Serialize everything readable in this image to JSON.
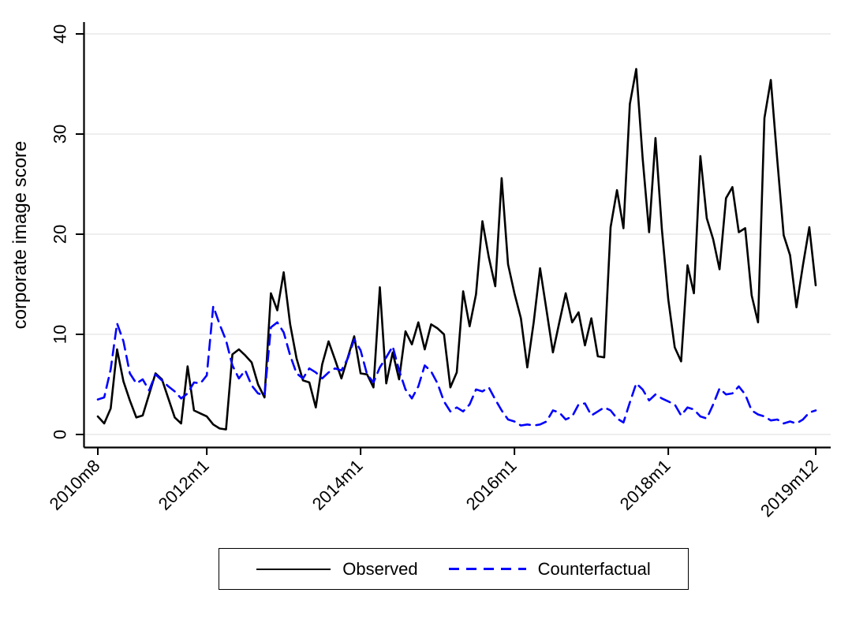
{
  "figure": {
    "background": "#ffffff",
    "axis_color": "#000000",
    "grid_color": "#e8e8e8"
  },
  "chart_data": {
    "type": "line",
    "title": "",
    "ylabel": "corporate image score",
    "xlabel": "",
    "ylim": [
      0,
      40
    ],
    "yticks": [
      0,
      10,
      20,
      30,
      40
    ],
    "grid": "horizontal",
    "legend_position": "bottom-center-boxed",
    "x_unit": "month",
    "x_start_label": "2010m8",
    "x_end_label": "2019m12",
    "xticks": [
      {
        "label": "2010m8",
        "month": 0
      },
      {
        "label": "2012m1",
        "month": 17
      },
      {
        "label": "2014m1",
        "month": 41
      },
      {
        "label": "2016m1",
        "month": 65
      },
      {
        "label": "2018m1",
        "month": 89
      },
      {
        "label": "2019m12",
        "month": 112
      }
    ],
    "series": [
      {
        "name": "Observed",
        "color": "#000000",
        "dash": "solid",
        "values": [
          1.8,
          1.1,
          2.6,
          8.5,
          5.3,
          3.4,
          1.7,
          1.9,
          4.0,
          6.1,
          5.5,
          3.6,
          1.7,
          1.1,
          6.8,
          2.4,
          2.1,
          1.8,
          1.0,
          0.6,
          0.5,
          8.0,
          8.5,
          7.9,
          7.2,
          5.0,
          3.7,
          14.1,
          12.4,
          16.2,
          11.0,
          7.6,
          5.4,
          5.2,
          2.7,
          7.0,
          9.3,
          7.5,
          5.6,
          7.7,
          9.8,
          6.1,
          6.0,
          4.7,
          14.7,
          5.1,
          8.2,
          5.5,
          10.3,
          9.0,
          11.2,
          8.5,
          11.0,
          10.6,
          10.0,
          4.7,
          6.2,
          14.3,
          10.8,
          14.0,
          21.3,
          17.7,
          14.8,
          25.6,
          17.0,
          14.1,
          11.6,
          6.7,
          11.2,
          16.6,
          12.4,
          8.2,
          11.2,
          14.1,
          11.2,
          12.2,
          8.9,
          11.6,
          7.8,
          7.7,
          20.7,
          24.4,
          20.6,
          33.0,
          36.5,
          27.6,
          20.2,
          29.6,
          20.5,
          13.5,
          8.7,
          7.3,
          16.9,
          14.1,
          27.8,
          21.6,
          19.5,
          16.5,
          23.6,
          24.7,
          20.2,
          20.6,
          13.9,
          11.2,
          31.6,
          35.4,
          27.4,
          19.9,
          17.9,
          12.7,
          16.9,
          20.7,
          14.9
        ]
      },
      {
        "name": "Counterfactual",
        "color": "#0000ff",
        "dash": "dashed",
        "values": [
          3.5,
          3.7,
          6.5,
          11.1,
          9.3,
          6.1,
          5.1,
          5.5,
          4.4,
          6.0,
          5.4,
          4.8,
          4.3,
          3.6,
          4.1,
          5.2,
          5.1,
          5.9,
          12.8,
          11.0,
          9.4,
          6.9,
          5.6,
          6.4,
          4.9,
          4.1,
          3.9,
          10.7,
          11.2,
          10.2,
          7.9,
          6.1,
          5.6,
          6.6,
          6.2,
          5.6,
          6.2,
          6.6,
          6.4,
          7.6,
          9.5,
          8.4,
          6.0,
          5.2,
          6.7,
          7.7,
          8.8,
          6.4,
          4.5,
          3.6,
          4.8,
          6.9,
          6.3,
          5.1,
          3.3,
          2.3,
          2.7,
          2.3,
          3.0,
          4.5,
          4.3,
          4.7,
          3.5,
          2.4,
          1.5,
          1.3,
          0.9,
          1.0,
          0.9,
          1.0,
          1.3,
          2.4,
          2.2,
          1.5,
          1.8,
          3.0,
          3.1,
          1.9,
          2.3,
          2.7,
          2.4,
          1.6,
          1.2,
          3.2,
          5.1,
          4.5,
          3.4,
          4.0,
          3.6,
          3.3,
          3.0,
          1.9,
          2.7,
          2.5,
          1.8,
          1.6,
          3.0,
          4.6,
          4.0,
          4.1,
          4.8,
          4.0,
          2.4,
          2.0,
          1.8,
          1.4,
          1.5,
          1.1,
          1.3,
          1.1,
          1.5,
          2.2,
          2.4
        ]
      }
    ]
  },
  "legend": {
    "items": [
      {
        "label": "Observed"
      },
      {
        "label": "Counterfactual"
      }
    ]
  }
}
